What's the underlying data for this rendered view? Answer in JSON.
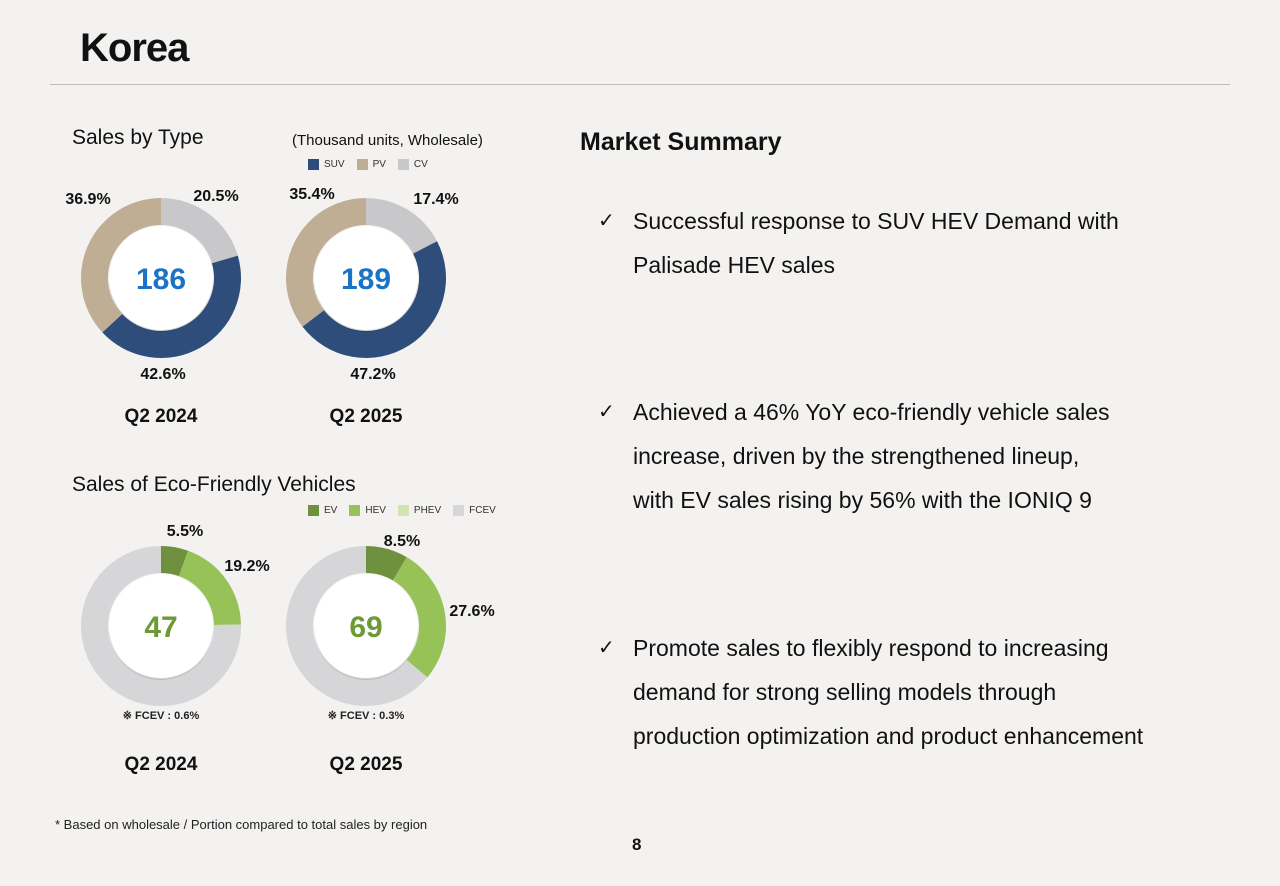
{
  "page": {
    "title": "Korea",
    "footnote": "* Based on wholesale / Portion compared to total sales by region",
    "page_number": "8"
  },
  "left": {
    "sales_by_type_title": "Sales by Type",
    "unit_note": "(Thousand units, Wholesale)",
    "eco_title": "Sales of Eco-Friendly Vehicles"
  },
  "colors": {
    "suv": "#2e4d7b",
    "pv": "#bfae94",
    "cv": "#c8c8ca",
    "ev": "#6f913f",
    "hev": "#97c257",
    "phev": "#d2e4b4",
    "fcev": "#d6d6d8",
    "total_blue": "#1a73c4",
    "total_green": "#6b9a36"
  },
  "chart_data": [
    {
      "type": "pie",
      "title": "Sales by Type",
      "period": "Q2 2024",
      "total": "186",
      "legend": [
        "SUV",
        "PV",
        "CV"
      ],
      "slices": [
        {
          "name": "CV",
          "value": 20.5,
          "label": "20.5%"
        },
        {
          "name": "SUV",
          "value": 42.6,
          "label": "42.6%"
        },
        {
          "name": "PV",
          "value": 36.9,
          "label": "36.9%"
        }
      ]
    },
    {
      "type": "pie",
      "title": "Sales by Type",
      "period": "Q2 2025",
      "total": "189",
      "legend": [
        "SUV",
        "PV",
        "CV"
      ],
      "slices": [
        {
          "name": "CV",
          "value": 17.4,
          "label": "17.4%"
        },
        {
          "name": "SUV",
          "value": 47.2,
          "label": "47.2%"
        },
        {
          "name": "PV",
          "value": 35.4,
          "label": "35.4%"
        }
      ]
    },
    {
      "type": "pie",
      "title": "Sales of Eco-Friendly Vehicles",
      "period": "Q2 2024",
      "total": "47",
      "note": "※ FCEV : 0.6%",
      "legend": [
        "EV",
        "HEV",
        "PHEV",
        "FCEV"
      ],
      "slices": [
        {
          "name": "EV",
          "value": 5.5,
          "label": "5.5%"
        },
        {
          "name": "HEV",
          "value": 19.2,
          "label": "19.2%"
        },
        {
          "name": "Other",
          "value": 75.3,
          "label": ""
        }
      ]
    },
    {
      "type": "pie",
      "title": "Sales of Eco-Friendly Vehicles",
      "period": "Q2 2025",
      "total": "69",
      "note": "※ FCEV : 0.3%",
      "legend": [
        "EV",
        "HEV",
        "PHEV",
        "FCEV"
      ],
      "slices": [
        {
          "name": "EV",
          "value": 8.5,
          "label": "8.5%"
        },
        {
          "name": "HEV",
          "value": 27.6,
          "label": "27.6%"
        },
        {
          "name": "Other",
          "value": 63.9,
          "label": ""
        }
      ]
    }
  ],
  "market_summary": {
    "title": "Market Summary",
    "bullets": [
      "Successful response to SUV HEV Demand with\nPalisade HEV sales",
      "Achieved a 46% YoY eco-friendly vehicle sales\nincrease, driven by the strengthened lineup,\nwith EV sales rising by 56% with the IONIQ 9",
      "Promote sales to flexibly respond to increasing\ndemand for strong selling models through\nproduction optimization and product enhancement"
    ],
    "check_glyph": "✓"
  }
}
